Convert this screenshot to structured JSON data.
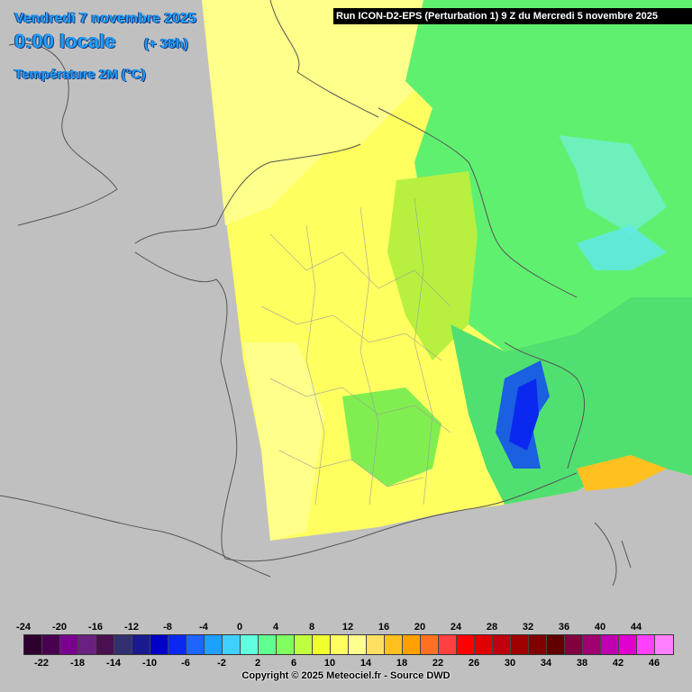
{
  "header": {
    "date": "Vendredi 7 novembre 2025",
    "time": "0:00 locale",
    "lead": "(+ 38h)",
    "parameter": "Température 2M (°C)",
    "run": "Run ICON-D2-EPS (Perturbation 1) 9 Z du Mercredi 5 novembre 2025"
  },
  "legend": {
    "top_labels": [
      "-24",
      "-20",
      "-16",
      "-12",
      "-8",
      "-4",
      "0",
      "4",
      "8",
      "12",
      "16",
      "20",
      "24",
      "28",
      "32",
      "36",
      "40",
      "44"
    ],
    "bottom_labels": [
      "-22",
      "-18",
      "-14",
      "-10",
      "-6",
      "-2",
      "2",
      "6",
      "10",
      "14",
      "18",
      "22",
      "26",
      "30",
      "34",
      "38",
      "42",
      "46"
    ],
    "colors": [
      "#2e0030",
      "#4a0050",
      "#7a0090",
      "#6a2080",
      "#4a1050",
      "#303070",
      "#1a1a90",
      "#0000c8",
      "#0a28f0",
      "#1e64ff",
      "#1ea0ff",
      "#40d0ff",
      "#60ffe0",
      "#60ff90",
      "#80ff60",
      "#c0ff40",
      "#f0ff30",
      "#ffff60",
      "#ffff90",
      "#ffe060",
      "#ffc020",
      "#ffa000",
      "#ff7020",
      "#ff4040",
      "#ff0000",
      "#e00000",
      "#c00010",
      "#a00000",
      "#800000",
      "#600000",
      "#800040",
      "#a00070",
      "#c000b0",
      "#e000d0",
      "#ff40ff",
      "#ff80ff"
    ]
  },
  "copyright": "Copyright © 2025 Meteociel.fr - Source DWD",
  "map_colors": {
    "background": "#c0c0c0",
    "warm": "#ffff80",
    "mild": "#ffff30",
    "cool": "#a0f040",
    "cold": "#40e070",
    "alpine": "#1a60e0",
    "corsica_warm": "#ffc020"
  }
}
